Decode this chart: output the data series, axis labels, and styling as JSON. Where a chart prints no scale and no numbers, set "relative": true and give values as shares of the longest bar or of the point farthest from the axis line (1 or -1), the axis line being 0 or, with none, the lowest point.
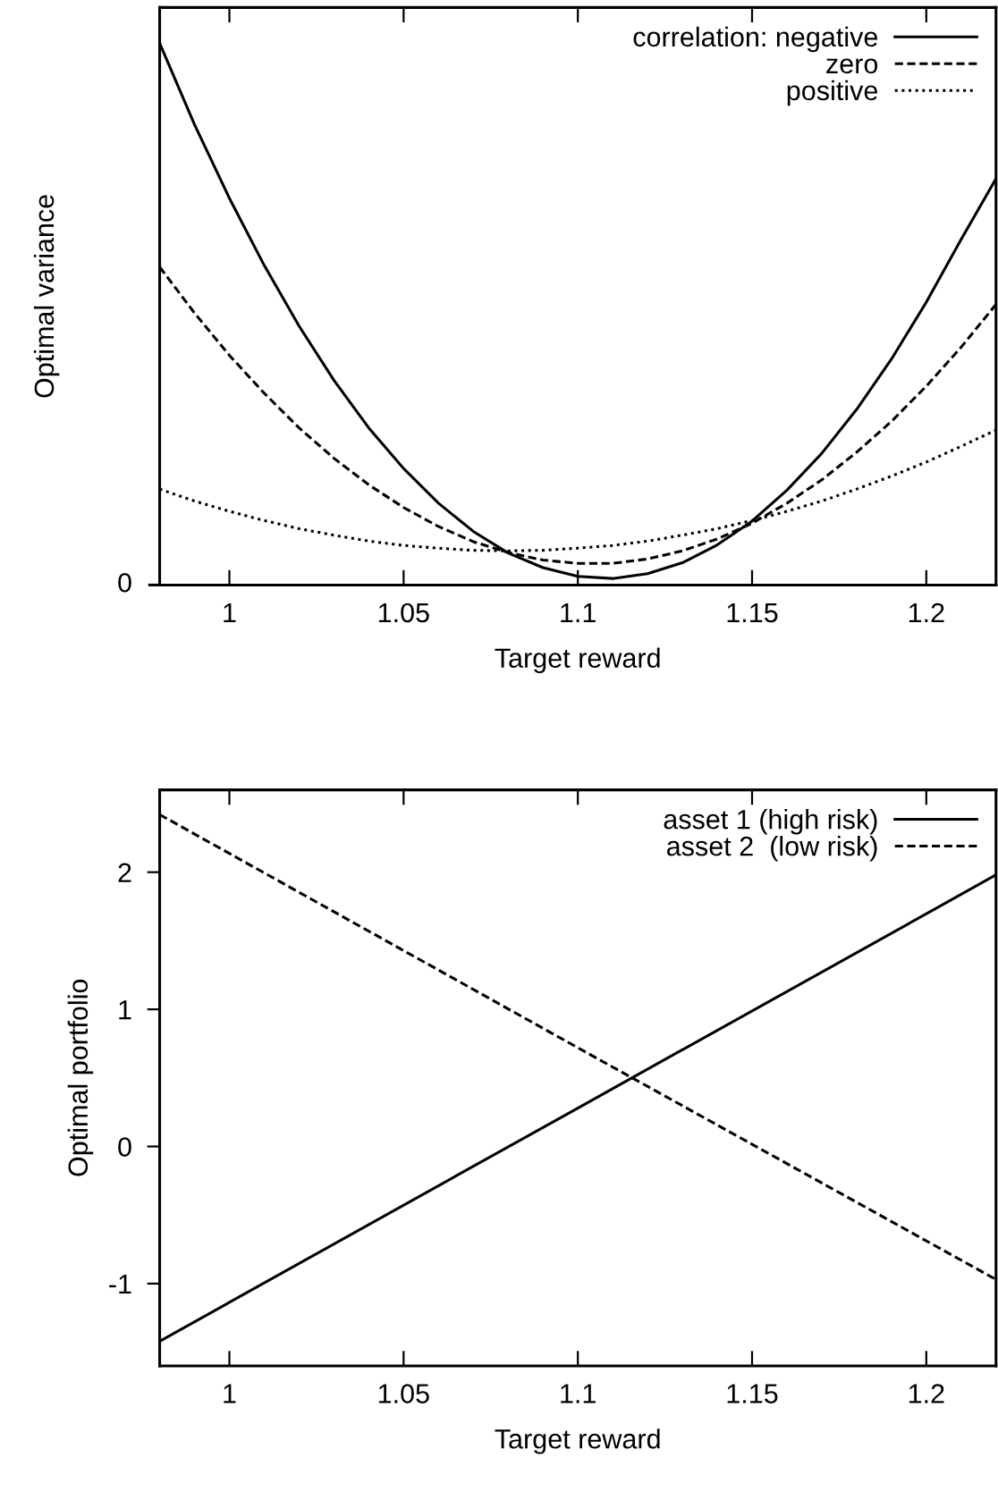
{
  "chart_data": [
    {
      "type": "line",
      "relative": true,
      "xlabel": "Target reward",
      "ylabel": "Optimal variance",
      "x": [
        0.98,
        0.99,
        1.0,
        1.01,
        1.02,
        1.03,
        1.04,
        1.05,
        1.06,
        1.07,
        1.08,
        1.09,
        1.1,
        1.11,
        1.12,
        1.13,
        1.14,
        1.15,
        1.16,
        1.17,
        1.18,
        1.19,
        1.2,
        1.21,
        1.22
      ],
      "xlim": [
        0.98,
        1.22
      ],
      "xticks": [
        1,
        1.05,
        1.1,
        1.15,
        1.2
      ],
      "legend": "top right",
      "grid": false,
      "annotations": [
        "0"
      ],
      "series": [
        {
          "name": "correlation: negative",
          "color": "#000000",
          "line_style": "solid",
          "values": [
            1.0,
            0.85,
            0.714,
            0.59,
            0.478,
            0.378,
            0.29,
            0.215,
            0.151,
            0.099,
            0.059,
            0.032,
            0.016,
            0.012,
            0.021,
            0.041,
            0.074,
            0.118,
            0.175,
            0.243,
            0.324,
            0.417,
            0.522,
            0.638,
            0.75
          ]
        },
        {
          "name": "zero",
          "color": "#000000",
          "line_style": "dashed",
          "values": [
            0.587,
            0.502,
            0.424,
            0.354,
            0.29,
            0.234,
            0.185,
            0.143,
            0.108,
            0.08,
            0.06,
            0.046,
            0.04,
            0.04,
            0.048,
            0.063,
            0.085,
            0.114,
            0.151,
            0.194,
            0.245,
            0.302,
            0.367,
            0.439,
            0.518
          ]
        },
        {
          "name": "positive",
          "color": "#000000",
          "line_style": "dotted",
          "values": [
            0.177,
            0.155,
            0.136,
            0.119,
            0.104,
            0.092,
            0.081,
            0.073,
            0.068,
            0.064,
            0.063,
            0.064,
            0.068,
            0.073,
            0.081,
            0.092,
            0.104,
            0.119,
            0.136,
            0.155,
            0.177,
            0.201,
            0.227,
            0.256,
            0.286
          ]
        }
      ]
    },
    {
      "type": "line",
      "xlabel": "Target reward",
      "ylabel": "Optimal portfolio",
      "x": [
        0.98,
        1.1,
        1.22
      ],
      "xlim": [
        0.98,
        1.22
      ],
      "xticks": [
        1,
        1.05,
        1.1,
        1.15,
        1.2
      ],
      "ylim": [
        -1.6,
        2.6
      ],
      "yticks": [
        -1,
        0,
        1,
        2
      ],
      "legend": "top right",
      "grid": false,
      "series": [
        {
          "name": "asset 1 (high risk)",
          "color": "#000000",
          "line_style": "solid",
          "values": [
            -1.42,
            0.28,
            1.98
          ]
        },
        {
          "name": "asset 2  (low risk)",
          "color": "#000000",
          "line_style": "dashed",
          "values": [
            2.42,
            0.72,
            -0.97
          ]
        }
      ]
    }
  ]
}
